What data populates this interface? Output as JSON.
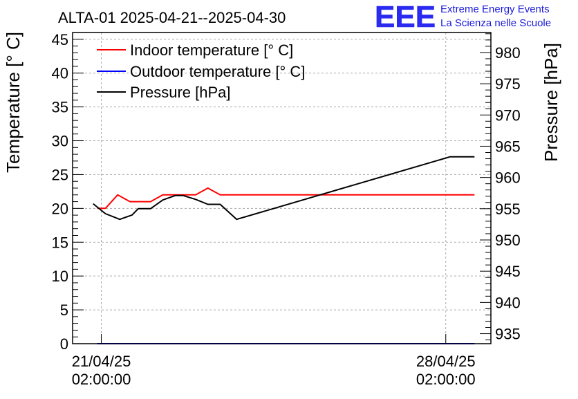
{
  "chart_data": {
    "type": "line",
    "title": "ALTA-01 2025-04-21--2025-04-30",
    "logo": {
      "mark": "EEE",
      "line1": "Extreme Energy Events",
      "line2": "La Scienza nelle Scuole"
    },
    "ylabel_left": "Temperature [° C]",
    "ylabel_right": "Pressure [hPa]",
    "ylim_left": [
      0,
      46
    ],
    "ylim_right": [
      933.4,
      983.2
    ],
    "left_ticks": [
      0,
      5,
      10,
      15,
      20,
      25,
      30,
      35,
      40,
      45
    ],
    "right_ticks": [
      935,
      940,
      945,
      950,
      955,
      960,
      965,
      970,
      975,
      980
    ],
    "xlim": [
      "2025-04-20 12:00",
      "2025-04-29 00:00"
    ],
    "x_ticks": [
      {
        "at": "2025-04-21 02:00",
        "line1": "21/04/25",
        "line2": "02:00:00"
      },
      {
        "at": "2025-04-28 02:00",
        "line1": "28/04/25",
        "line2": "02:00:00"
      }
    ],
    "grid": true,
    "legend_position": "top-left",
    "series": [
      {
        "name": "Indoor temperature [° C]",
        "color": "#ff0000",
        "axis": "left",
        "points": [
          [
            "2025-04-21 00:00",
            20
          ],
          [
            "2025-04-21 04:00",
            20
          ],
          [
            "2025-04-21 10:00",
            22
          ],
          [
            "2025-04-21 16:00",
            21
          ],
          [
            "2025-04-22 02:00",
            21
          ],
          [
            "2025-04-22 08:00",
            22
          ],
          [
            "2025-04-23 00:00",
            22
          ],
          [
            "2025-04-23 06:00",
            23
          ],
          [
            "2025-04-23 12:00",
            22
          ],
          [
            "2025-04-28 16:00",
            22
          ]
        ]
      },
      {
        "name": "Outdoor temperature [° C]",
        "color": "#0000ff",
        "axis": "left",
        "points": [
          [
            "2025-04-21 00:00",
            0
          ],
          [
            "2025-04-28 16:00",
            0
          ]
        ]
      },
      {
        "name": "Pressure [hPa]",
        "color": "#000000",
        "axis": "right",
        "points": [
          [
            "2025-04-20 22:00",
            955.8
          ],
          [
            "2025-04-21 04:00",
            954.2
          ],
          [
            "2025-04-21 11:00",
            953.3
          ],
          [
            "2025-04-21 17:00",
            954.0
          ],
          [
            "2025-04-21 20:00",
            955.0
          ],
          [
            "2025-04-22 02:00",
            955.0
          ],
          [
            "2025-04-22 08:00",
            956.4
          ],
          [
            "2025-04-22 14:00",
            957.1
          ],
          [
            "2025-04-22 18:00",
            957.1
          ],
          [
            "2025-04-23 00:00",
            956.5
          ],
          [
            "2025-04-23 06:00",
            955.7
          ],
          [
            "2025-04-23 12:00",
            955.7
          ],
          [
            "2025-04-23 20:00",
            953.3
          ],
          [
            "2025-04-28 04:00",
            963.3
          ],
          [
            "2025-04-28 16:00",
            963.3
          ]
        ]
      }
    ]
  }
}
